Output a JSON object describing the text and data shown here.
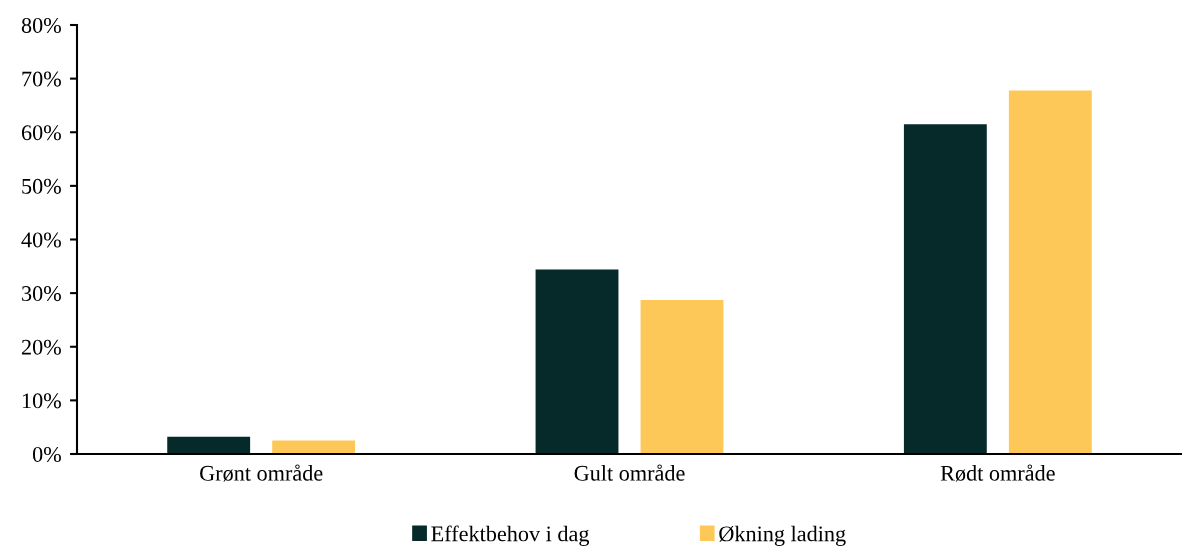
{
  "chart_data": {
    "type": "bar",
    "categories": [
      "Grønt område",
      "Gult område",
      "Rødt område"
    ],
    "series": [
      {
        "name": "Effektbehov i dag",
        "color": "#06292a",
        "values": [
          3.2,
          34.4,
          61.5
        ]
      },
      {
        "name": "Økning lading",
        "color": "#fdc857",
        "values": [
          2.5,
          28.7,
          67.8
        ]
      }
    ],
    "ylim": [
      0,
      80
    ],
    "yticks": [
      {
        "value": 0,
        "label": "0%"
      },
      {
        "value": 10,
        "label": "10%"
      },
      {
        "value": 20,
        "label": "20%"
      },
      {
        "value": 30,
        "label": "30%"
      },
      {
        "value": 40,
        "label": "40%"
      },
      {
        "value": 50,
        "label": "50%"
      },
      {
        "value": 60,
        "label": "60%"
      },
      {
        "value": 70,
        "label": "70%"
      },
      {
        "value": 80,
        "label": "80%"
      }
    ],
    "grid": false,
    "legend": "bottom"
  }
}
